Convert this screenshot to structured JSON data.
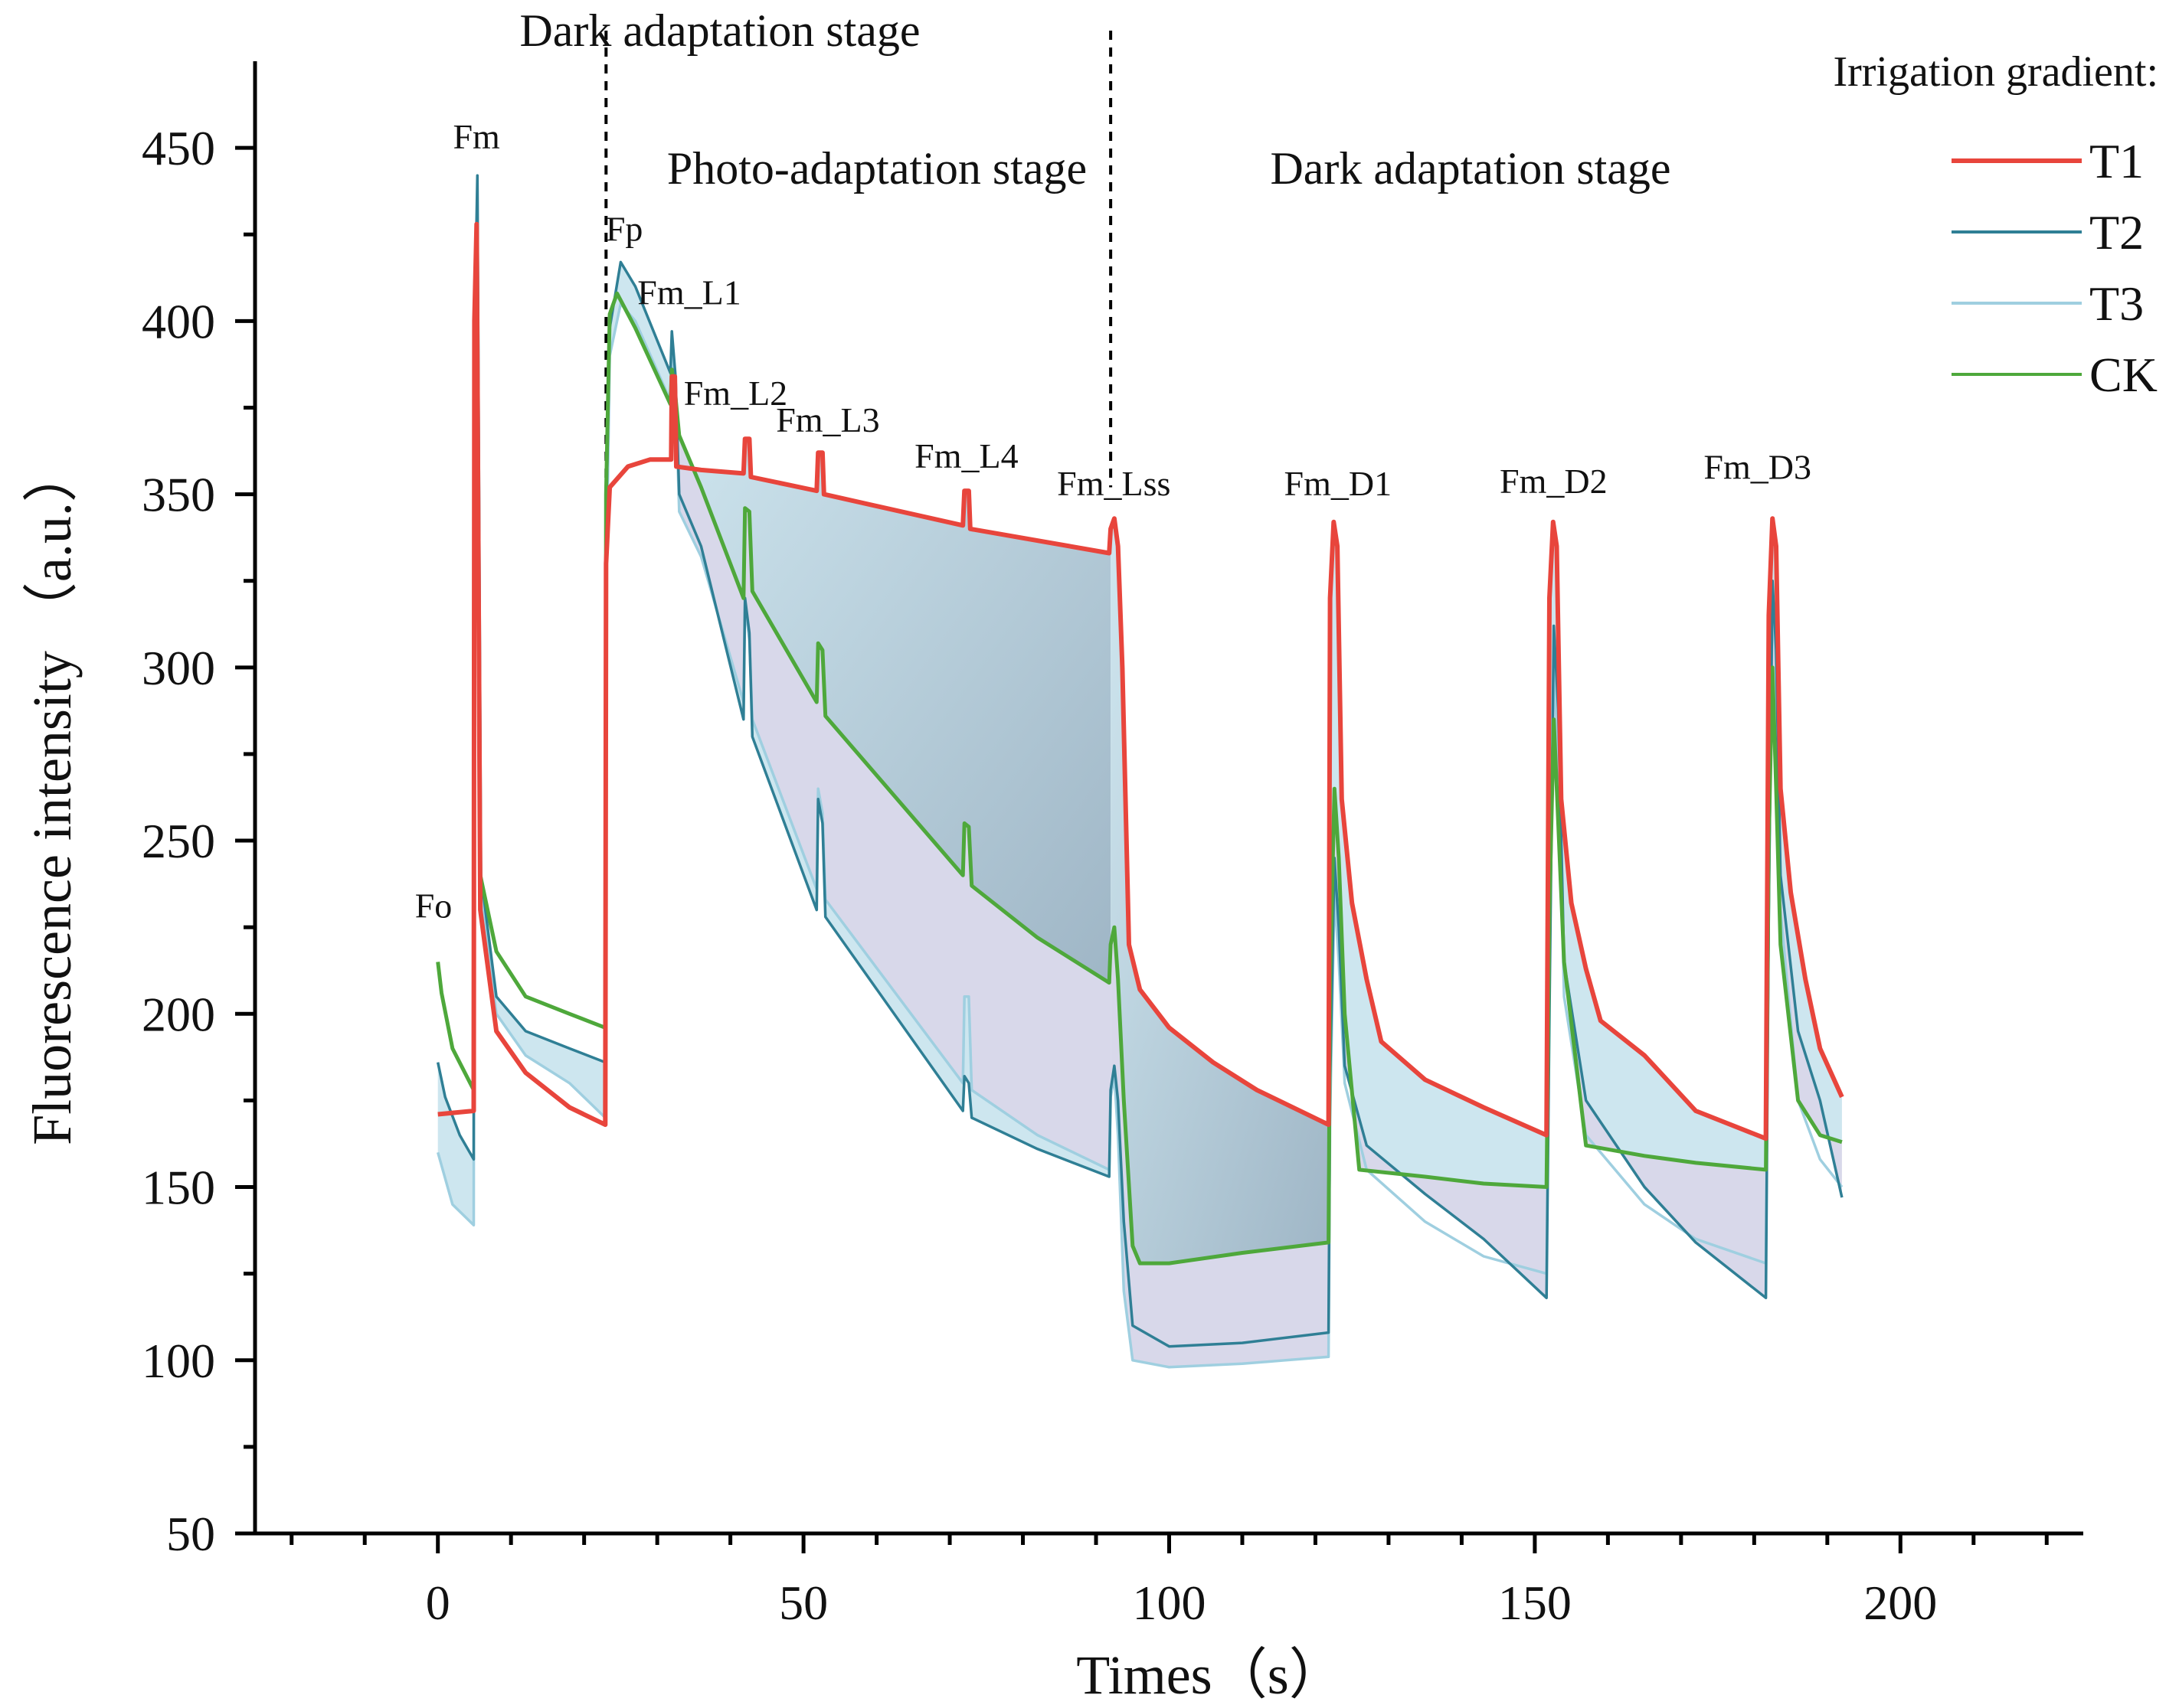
{
  "chart_data": {
    "type": "line",
    "xlabel": "Times（s）",
    "ylabel": "Fluorescence intensity （a.u.）",
    "xlim": [
      -25,
      225
    ],
    "ylim": [
      50,
      475
    ],
    "xticks": [
      0,
      50,
      100,
      150,
      200
    ],
    "yticks": [
      50,
      100,
      150,
      200,
      250,
      300,
      350,
      400,
      450
    ],
    "grid": false,
    "stages": [
      {
        "label": "Dark adaptation stage",
        "x_start": 0,
        "x_end": 23
      },
      {
        "label": "Photo-adaptation stage",
        "x_start": 23,
        "x_end": 92
      },
      {
        "label": "Dark adaptation stage",
        "x_start": 92,
        "x_end": 192
      }
    ],
    "dividers_x": [
      23,
      92
    ],
    "annotations": [
      {
        "text": "Fo",
        "x": 0,
        "y": 215
      },
      {
        "text": "Fm",
        "x": 5,
        "y": 441
      },
      {
        "text": "Fp",
        "x": 24,
        "y": 417
      },
      {
        "text": "Fm_L1",
        "x": 32,
        "y": 396
      },
      {
        "text": "Fm_L2",
        "x": 42,
        "y": 368
      },
      {
        "text": "Fm_L3",
        "x": 52,
        "y": 361
      },
      {
        "text": "Fm_L4",
        "x": 72,
        "y": 351
      },
      {
        "text": "Fm_Lss",
        "x": 92,
        "y": 342
      },
      {
        "text": "Fm_D1",
        "x": 122,
        "y": 342
      },
      {
        "text": "Fm_D2",
        "x": 152,
        "y": 342
      },
      {
        "text": "Fm_D3",
        "x": 182,
        "y": 346
      }
    ],
    "legend": {
      "title": "Irrigation gradient:",
      "placement": "top-right"
    },
    "series": [
      {
        "name": "T1",
        "color": "#e8453c",
        "points": [
          [
            0,
            171
          ],
          [
            4.9,
            172
          ],
          [
            5,
            400
          ],
          [
            5.3,
            428
          ],
          [
            5.8,
            230
          ],
          [
            8,
            195
          ],
          [
            12,
            183
          ],
          [
            18,
            173
          ],
          [
            22.9,
            168
          ],
          [
            23,
            330
          ],
          [
            23.5,
            352
          ],
          [
            26,
            358
          ],
          [
            29,
            360
          ],
          [
            31.9,
            360
          ],
          [
            32,
            384
          ],
          [
            32.4,
            384
          ],
          [
            32.6,
            358
          ],
          [
            36,
            357
          ],
          [
            41.8,
            356
          ],
          [
            42,
            366
          ],
          [
            42.6,
            366
          ],
          [
            42.8,
            355
          ],
          [
            51.8,
            351
          ],
          [
            52,
            362
          ],
          [
            52.6,
            362
          ],
          [
            52.8,
            350
          ],
          [
            71.8,
            341
          ],
          [
            72,
            351
          ],
          [
            72.6,
            351
          ],
          [
            72.8,
            340
          ],
          [
            91.8,
            333
          ],
          [
            92,
            340
          ],
          [
            92.5,
            343
          ],
          [
            93,
            335
          ],
          [
            93.6,
            300
          ],
          [
            94.5,
            220
          ],
          [
            96,
            207
          ],
          [
            100,
            196
          ],
          [
            106,
            186
          ],
          [
            112,
            178
          ],
          [
            121.8,
            168
          ],
          [
            122,
            320
          ],
          [
            122.5,
            342
          ],
          [
            123,
            335
          ],
          [
            123.6,
            262
          ],
          [
            125,
            232
          ],
          [
            127,
            210
          ],
          [
            129,
            192
          ],
          [
            135,
            181
          ],
          [
            143,
            173
          ],
          [
            151.6,
            165
          ],
          [
            152,
            320
          ],
          [
            152.5,
            342
          ],
          [
            153,
            335
          ],
          [
            153.6,
            262
          ],
          [
            155,
            232
          ],
          [
            157,
            213
          ],
          [
            159,
            198
          ],
          [
            165,
            188
          ],
          [
            172,
            172
          ],
          [
            181.6,
            164
          ],
          [
            182,
            315
          ],
          [
            182.5,
            343
          ],
          [
            183,
            335
          ],
          [
            183.6,
            265
          ],
          [
            185,
            235
          ],
          [
            187,
            210
          ],
          [
            189,
            190
          ],
          [
            192,
            176
          ]
        ]
      },
      {
        "name": "T2",
        "color": "#2f7f95",
        "points": [
          [
            0,
            186
          ],
          [
            1,
            176
          ],
          [
            3,
            165
          ],
          [
            4.9,
            158
          ],
          [
            5,
            395
          ],
          [
            5.4,
            442
          ],
          [
            5.9,
            240
          ],
          [
            8,
            205
          ],
          [
            12,
            195
          ],
          [
            18,
            190
          ],
          [
            22.9,
            186
          ],
          [
            23,
            340
          ],
          [
            23.5,
            398
          ],
          [
            25,
            417
          ],
          [
            27,
            410
          ],
          [
            31.8,
            385
          ],
          [
            32,
            397
          ],
          [
            32.5,
            384
          ],
          [
            33,
            350
          ],
          [
            36,
            335
          ],
          [
            41.8,
            285
          ],
          [
            42,
            320
          ],
          [
            42.6,
            310
          ],
          [
            43,
            280
          ],
          [
            51.8,
            230
          ],
          [
            52,
            262
          ],
          [
            52.6,
            255
          ],
          [
            53,
            228
          ],
          [
            71.8,
            172
          ],
          [
            72,
            182
          ],
          [
            72.6,
            180
          ],
          [
            73,
            170
          ],
          [
            82,
            161
          ],
          [
            91.8,
            153
          ],
          [
            92,
            178
          ],
          [
            92.5,
            185
          ],
          [
            93,
            175
          ],
          [
            93.8,
            140
          ],
          [
            95,
            110
          ],
          [
            100,
            104
          ],
          [
            110,
            105
          ],
          [
            121.8,
            108
          ],
          [
            122,
            180
          ],
          [
            122.6,
            245
          ],
          [
            123.2,
            225
          ],
          [
            124,
            185
          ],
          [
            127,
            162
          ],
          [
            135,
            148
          ],
          [
            143,
            135
          ],
          [
            151.6,
            118
          ],
          [
            152,
            200
          ],
          [
            152.6,
            312
          ],
          [
            153.2,
            288
          ],
          [
            154,
            215
          ],
          [
            157,
            175
          ],
          [
            165,
            150
          ],
          [
            172,
            134
          ],
          [
            181.6,
            118
          ],
          [
            182,
            230
          ],
          [
            182.5,
            325
          ],
          [
            183,
            305
          ],
          [
            183.6,
            240
          ],
          [
            186,
            195
          ],
          [
            189,
            175
          ],
          [
            192,
            147
          ]
        ]
      },
      {
        "name": "T3",
        "color": "#9fcfe0",
        "points": [
          [
            0,
            160
          ],
          [
            2,
            145
          ],
          [
            4.9,
            139
          ],
          [
            5,
            380
          ],
          [
            5.4,
            438
          ],
          [
            5.9,
            235
          ],
          [
            8,
            200
          ],
          [
            12,
            188
          ],
          [
            18,
            180
          ],
          [
            22.9,
            170
          ],
          [
            23,
            320
          ],
          [
            23.5,
            390
          ],
          [
            25,
            405
          ],
          [
            27,
            400
          ],
          [
            31.8,
            377
          ],
          [
            32,
            392
          ],
          [
            32.5,
            380
          ],
          [
            33,
            345
          ],
          [
            36,
            332
          ],
          [
            41.8,
            290
          ],
          [
            42,
            318
          ],
          [
            42.6,
            308
          ],
          [
            43,
            285
          ],
          [
            51.8,
            236
          ],
          [
            52,
            265
          ],
          [
            52.6,
            258
          ],
          [
            53,
            233
          ],
          [
            71.8,
            180
          ],
          [
            72,
            205
          ],
          [
            72.6,
            205
          ],
          [
            73,
            178
          ],
          [
            82,
            165
          ],
          [
            91.8,
            155
          ],
          [
            92,
            176
          ],
          [
            92.5,
            182
          ],
          [
            93,
            165
          ],
          [
            93.8,
            120
          ],
          [
            95,
            100
          ],
          [
            100,
            98
          ],
          [
            110,
            99
          ],
          [
            121.8,
            101
          ],
          [
            122,
            170
          ],
          [
            122.6,
            235
          ],
          [
            123.2,
            215
          ],
          [
            124,
            180
          ],
          [
            127,
            155
          ],
          [
            135,
            140
          ],
          [
            143,
            130
          ],
          [
            151.6,
            125
          ],
          [
            152,
            210
          ],
          [
            152.6,
            300
          ],
          [
            153.2,
            275
          ],
          [
            154,
            205
          ],
          [
            157,
            165
          ],
          [
            165,
            145
          ],
          [
            172,
            135
          ],
          [
            181.6,
            128
          ],
          [
            182,
            230
          ],
          [
            182.5,
            320
          ],
          [
            183,
            300
          ],
          [
            183.6,
            230
          ],
          [
            186,
            175
          ],
          [
            189,
            158
          ],
          [
            192,
            150
          ]
        ]
      },
      {
        "name": "CK",
        "color": "#4ea83b",
        "points": [
          [
            0,
            215
          ],
          [
            0.5,
            206
          ],
          [
            2,
            190
          ],
          [
            4.9,
            178
          ],
          [
            5,
            395
          ],
          [
            5.3,
            425
          ],
          [
            5.8,
            240
          ],
          [
            8,
            218
          ],
          [
            12,
            205
          ],
          [
            18,
            200
          ],
          [
            22.9,
            196
          ],
          [
            23,
            350
          ],
          [
            23.5,
            402
          ],
          [
            24.5,
            408
          ],
          [
            27,
            398
          ],
          [
            31.8,
            376
          ],
          [
            32,
            386
          ],
          [
            32.5,
            378
          ],
          [
            33,
            367
          ],
          [
            36,
            352
          ],
          [
            41.8,
            320
          ],
          [
            42,
            346
          ],
          [
            42.6,
            345
          ],
          [
            43,
            322
          ],
          [
            51.8,
            290
          ],
          [
            52,
            307
          ],
          [
            52.6,
            305
          ],
          [
            53,
            286
          ],
          [
            71.8,
            240
          ],
          [
            72,
            255
          ],
          [
            72.6,
            254
          ],
          [
            73,
            237
          ],
          [
            82,
            222
          ],
          [
            91.8,
            209
          ],
          [
            92,
            220
          ],
          [
            92.5,
            225
          ],
          [
            93,
            210
          ],
          [
            93.8,
            175
          ],
          [
            95,
            133
          ],
          [
            96,
            128
          ],
          [
            100,
            128
          ],
          [
            110,
            131
          ],
          [
            121.8,
            134
          ],
          [
            122,
            210
          ],
          [
            122.6,
            265
          ],
          [
            123.2,
            245
          ],
          [
            124,
            200
          ],
          [
            126,
            155
          ],
          [
            135,
            153
          ],
          [
            143,
            151
          ],
          [
            151.6,
            150
          ],
          [
            152,
            230
          ],
          [
            152.6,
            285
          ],
          [
            153.2,
            255
          ],
          [
            154,
            215
          ],
          [
            157,
            162
          ],
          [
            165,
            159
          ],
          [
            172,
            157
          ],
          [
            181.6,
            155
          ],
          [
            182,
            250
          ],
          [
            182.5,
            300
          ],
          [
            183,
            265
          ],
          [
            183.6,
            220
          ],
          [
            186,
            175
          ],
          [
            189,
            165
          ],
          [
            192,
            163
          ]
        ]
      }
    ]
  }
}
